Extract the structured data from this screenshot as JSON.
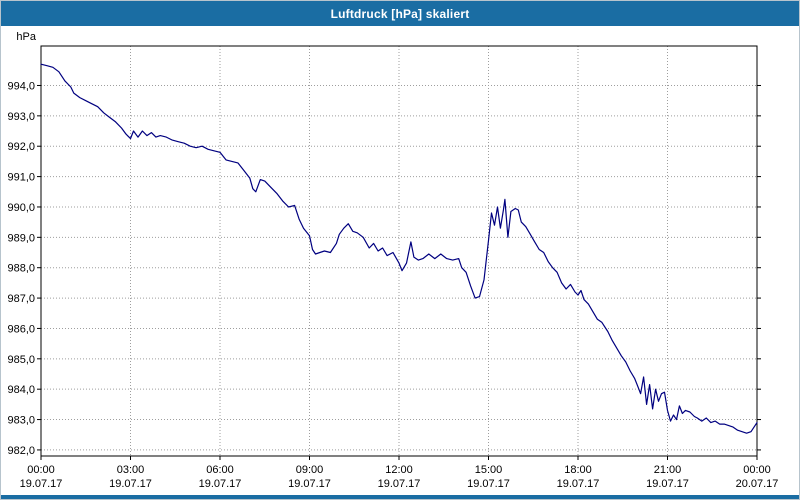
{
  "title_bar": {
    "title": "Luftdruck [hPa] skaliert",
    "background": "#1a6da3",
    "text_color": "#ffffff"
  },
  "chart_data": {
    "type": "line",
    "title": "Luftdruck [hPa] skaliert",
    "ylabel": "hPa",
    "decimal_separator": ",",
    "grid": "dotted",
    "legend_position": "none",
    "ylim": [
      981.8,
      995.3
    ],
    "xlim": [
      0,
      24
    ],
    "y_ticks": [
      994,
      993,
      992,
      991,
      990,
      989,
      988,
      987,
      986,
      985,
      984,
      983,
      982
    ],
    "x_ticks": [
      {
        "time": "00:00",
        "date": "19.07.17"
      },
      {
        "time": "03:00",
        "date": "19.07.17"
      },
      {
        "time": "06:00",
        "date": "19.07.17"
      },
      {
        "time": "09:00",
        "date": "19.07.17"
      },
      {
        "time": "12:00",
        "date": "19.07.17"
      },
      {
        "time": "15:00",
        "date": "19.07.17"
      },
      {
        "time": "18:00",
        "date": "19.07.17"
      },
      {
        "time": "21:00",
        "date": "19.07.17"
      },
      {
        "time": "00:00",
        "date": "20.07.17"
      }
    ],
    "colors": {
      "line": "#000080",
      "grid": "#9e9e9e",
      "axis": "#000000",
      "background": "#ffffff"
    },
    "series": [
      {
        "name": "Luftdruck",
        "color": "#000080",
        "points": [
          [
            0.0,
            994.7
          ],
          [
            0.2,
            994.65
          ],
          [
            0.4,
            994.6
          ],
          [
            0.6,
            994.45
          ],
          [
            0.8,
            994.15
          ],
          [
            1.0,
            993.95
          ],
          [
            1.1,
            993.75
          ],
          [
            1.3,
            993.6
          ],
          [
            1.5,
            993.5
          ],
          [
            1.7,
            993.4
          ],
          [
            1.9,
            993.3
          ],
          [
            2.1,
            993.1
          ],
          [
            2.3,
            992.95
          ],
          [
            2.5,
            992.8
          ],
          [
            2.7,
            992.6
          ],
          [
            2.85,
            992.4
          ],
          [
            3.0,
            992.25
          ],
          [
            3.1,
            992.5
          ],
          [
            3.25,
            992.3
          ],
          [
            3.4,
            992.5
          ],
          [
            3.55,
            992.35
          ],
          [
            3.7,
            992.45
          ],
          [
            3.85,
            992.3
          ],
          [
            4.0,
            992.35
          ],
          [
            4.2,
            992.3
          ],
          [
            4.4,
            992.2
          ],
          [
            4.6,
            992.15
          ],
          [
            4.8,
            992.1
          ],
          [
            5.0,
            992.0
          ],
          [
            5.2,
            991.95
          ],
          [
            5.4,
            992.0
          ],
          [
            5.6,
            991.9
          ],
          [
            5.8,
            991.85
          ],
          [
            6.0,
            991.8
          ],
          [
            6.2,
            991.55
          ],
          [
            6.4,
            991.5
          ],
          [
            6.6,
            991.45
          ],
          [
            6.8,
            991.2
          ],
          [
            7.0,
            990.95
          ],
          [
            7.1,
            990.6
          ],
          [
            7.2,
            990.5
          ],
          [
            7.35,
            990.9
          ],
          [
            7.5,
            990.85
          ],
          [
            7.7,
            990.65
          ],
          [
            7.9,
            990.45
          ],
          [
            8.1,
            990.2
          ],
          [
            8.3,
            990.0
          ],
          [
            8.5,
            990.05
          ],
          [
            8.65,
            989.6
          ],
          [
            8.8,
            989.3
          ],
          [
            9.0,
            989.05
          ],
          [
            9.1,
            988.6
          ],
          [
            9.2,
            988.45
          ],
          [
            9.35,
            988.5
          ],
          [
            9.5,
            988.55
          ],
          [
            9.7,
            988.5
          ],
          [
            9.9,
            988.8
          ],
          [
            10.0,
            989.1
          ],
          [
            10.15,
            989.3
          ],
          [
            10.3,
            989.45
          ],
          [
            10.45,
            989.2
          ],
          [
            10.6,
            989.15
          ],
          [
            10.8,
            989.0
          ],
          [
            11.0,
            988.65
          ],
          [
            11.15,
            988.8
          ],
          [
            11.3,
            988.55
          ],
          [
            11.45,
            988.65
          ],
          [
            11.6,
            988.4
          ],
          [
            11.8,
            988.5
          ],
          [
            12.0,
            988.15
          ],
          [
            12.1,
            987.9
          ],
          [
            12.25,
            988.15
          ],
          [
            12.4,
            988.85
          ],
          [
            12.5,
            988.35
          ],
          [
            12.65,
            988.25
          ],
          [
            12.8,
            988.3
          ],
          [
            13.0,
            988.45
          ],
          [
            13.2,
            988.3
          ],
          [
            13.4,
            988.45
          ],
          [
            13.6,
            988.3
          ],
          [
            13.8,
            988.25
          ],
          [
            14.0,
            988.3
          ],
          [
            14.1,
            988.0
          ],
          [
            14.25,
            987.85
          ],
          [
            14.4,
            987.4
          ],
          [
            14.55,
            987.0
          ],
          [
            14.7,
            987.05
          ],
          [
            14.85,
            987.6
          ],
          [
            15.0,
            988.9
          ],
          [
            15.1,
            989.8
          ],
          [
            15.2,
            989.4
          ],
          [
            15.3,
            990.0
          ],
          [
            15.4,
            989.3
          ],
          [
            15.5,
            989.9
          ],
          [
            15.55,
            990.25
          ],
          [
            15.65,
            989.0
          ],
          [
            15.75,
            989.85
          ],
          [
            15.9,
            989.95
          ],
          [
            16.0,
            989.9
          ],
          [
            16.1,
            989.5
          ],
          [
            16.25,
            989.35
          ],
          [
            16.4,
            989.1
          ],
          [
            16.55,
            988.85
          ],
          [
            16.7,
            988.6
          ],
          [
            16.85,
            988.5
          ],
          [
            17.0,
            988.2
          ],
          [
            17.15,
            988.0
          ],
          [
            17.3,
            987.85
          ],
          [
            17.45,
            987.5
          ],
          [
            17.6,
            987.3
          ],
          [
            17.75,
            987.45
          ],
          [
            17.9,
            987.2
          ],
          [
            18.0,
            987.1
          ],
          [
            18.1,
            987.25
          ],
          [
            18.2,
            986.95
          ],
          [
            18.35,
            986.8
          ],
          [
            18.5,
            986.55
          ],
          [
            18.65,
            986.3
          ],
          [
            18.8,
            986.2
          ],
          [
            19.0,
            985.9
          ],
          [
            19.15,
            985.6
          ],
          [
            19.3,
            985.35
          ],
          [
            19.45,
            985.1
          ],
          [
            19.6,
            984.9
          ],
          [
            19.75,
            984.6
          ],
          [
            19.9,
            984.35
          ],
          [
            20.0,
            984.1
          ],
          [
            20.1,
            983.85
          ],
          [
            20.2,
            984.4
          ],
          [
            20.3,
            983.5
          ],
          [
            20.4,
            984.15
          ],
          [
            20.5,
            983.35
          ],
          [
            20.6,
            984.0
          ],
          [
            20.7,
            983.6
          ],
          [
            20.8,
            983.85
          ],
          [
            20.9,
            983.9
          ],
          [
            21.0,
            983.3
          ],
          [
            21.1,
            982.95
          ],
          [
            21.2,
            983.15
          ],
          [
            21.3,
            983.0
          ],
          [
            21.4,
            983.45
          ],
          [
            21.5,
            983.2
          ],
          [
            21.6,
            983.3
          ],
          [
            21.75,
            983.25
          ],
          [
            21.9,
            983.1
          ],
          [
            22.0,
            983.05
          ],
          [
            22.15,
            982.95
          ],
          [
            22.3,
            983.05
          ],
          [
            22.45,
            982.9
          ],
          [
            22.6,
            982.95
          ],
          [
            22.75,
            982.85
          ],
          [
            22.9,
            982.85
          ],
          [
            23.05,
            982.8
          ],
          [
            23.2,
            982.75
          ],
          [
            23.35,
            982.65
          ],
          [
            23.5,
            982.6
          ],
          [
            23.65,
            982.55
          ],
          [
            23.8,
            982.6
          ],
          [
            24.0,
            982.9
          ]
        ]
      }
    ]
  }
}
